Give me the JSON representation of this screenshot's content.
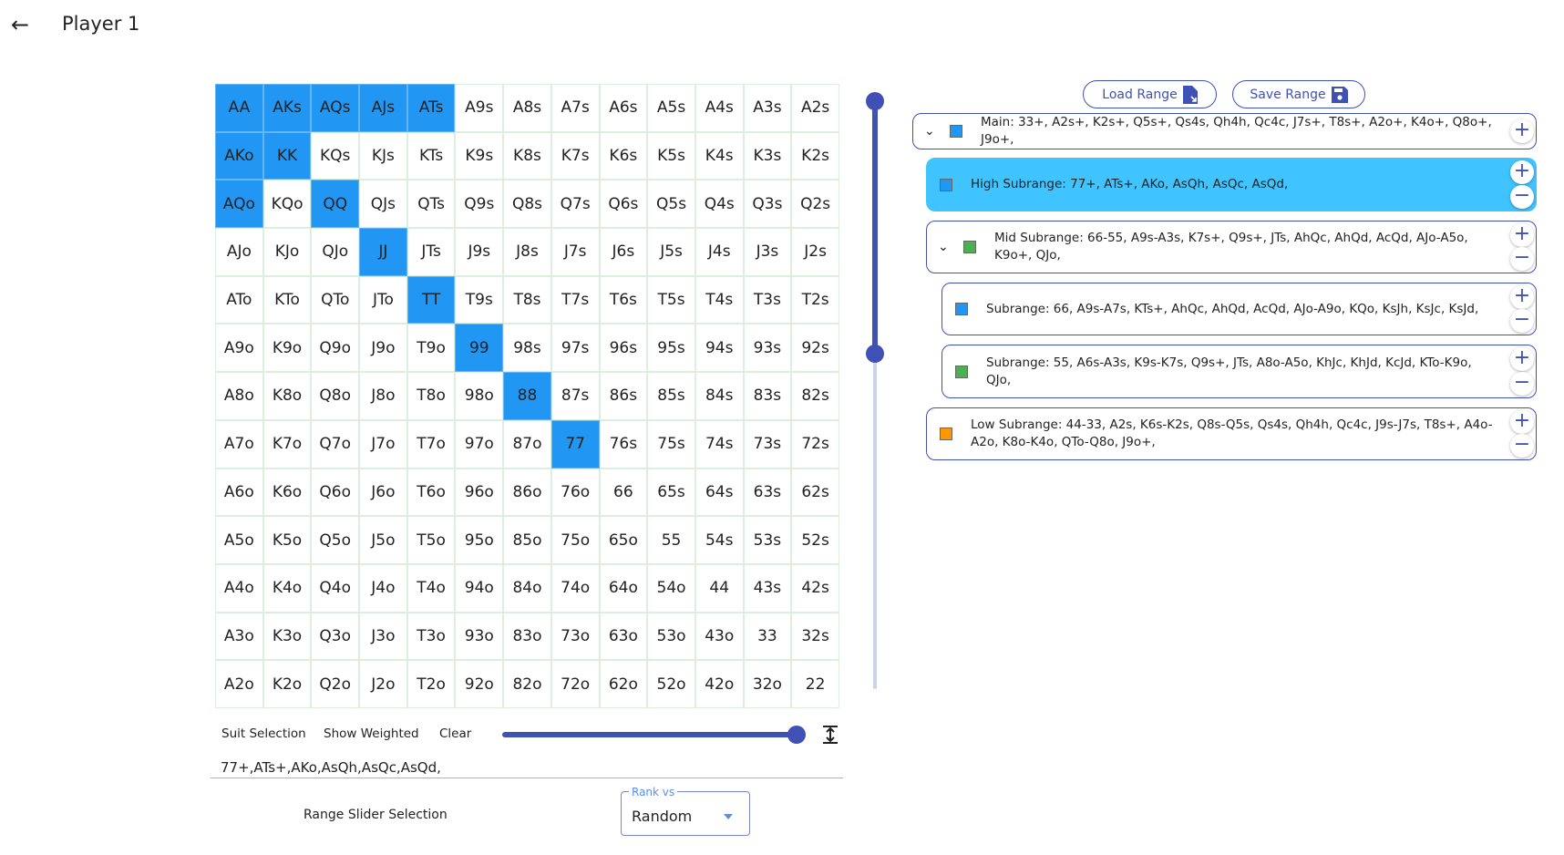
{
  "header": {
    "title": "Player 1",
    "back_icon": "arrow-left-icon"
  },
  "grid": {
    "selected_color": "#2196f3",
    "rows": [
      [
        "AA",
        "AKs",
        "AQs",
        "AJs",
        "ATs",
        "A9s",
        "A8s",
        "A7s",
        "A6s",
        "A5s",
        "A4s",
        "A3s",
        "A2s"
      ],
      [
        "AKo",
        "KK",
        "KQs",
        "KJs",
        "KTs",
        "K9s",
        "K8s",
        "K7s",
        "K6s",
        "K5s",
        "K4s",
        "K3s",
        "K2s"
      ],
      [
        "AQo",
        "KQo",
        "QQ",
        "QJs",
        "QTs",
        "Q9s",
        "Q8s",
        "Q7s",
        "Q6s",
        "Q5s",
        "Q4s",
        "Q3s",
        "Q2s"
      ],
      [
        "AJo",
        "KJo",
        "QJo",
        "JJ",
        "JTs",
        "J9s",
        "J8s",
        "J7s",
        "J6s",
        "J5s",
        "J4s",
        "J3s",
        "J2s"
      ],
      [
        "ATo",
        "KTo",
        "QTo",
        "JTo",
        "TT",
        "T9s",
        "T8s",
        "T7s",
        "T6s",
        "T5s",
        "T4s",
        "T3s",
        "T2s"
      ],
      [
        "A9o",
        "K9o",
        "Q9o",
        "J9o",
        "T9o",
        "99",
        "98s",
        "97s",
        "96s",
        "95s",
        "94s",
        "93s",
        "92s"
      ],
      [
        "A8o",
        "K8o",
        "Q8o",
        "J8o",
        "T8o",
        "98o",
        "88",
        "87s",
        "86s",
        "85s",
        "84s",
        "83s",
        "82s"
      ],
      [
        "A7o",
        "K7o",
        "Q7o",
        "J7o",
        "T7o",
        "97o",
        "87o",
        "77",
        "76s",
        "75s",
        "74s",
        "73s",
        "72s"
      ],
      [
        "A6o",
        "K6o",
        "Q6o",
        "J6o",
        "T6o",
        "96o",
        "86o",
        "76o",
        "66",
        "65s",
        "64s",
        "63s",
        "62s"
      ],
      [
        "A5o",
        "K5o",
        "Q5o",
        "J5o",
        "T5o",
        "95o",
        "85o",
        "75o",
        "65o",
        "55",
        "54s",
        "53s",
        "52s"
      ],
      [
        "A4o",
        "K4o",
        "Q4o",
        "J4o",
        "T4o",
        "94o",
        "84o",
        "74o",
        "64o",
        "54o",
        "44",
        "43s",
        "42s"
      ],
      [
        "A3o",
        "K3o",
        "Q3o",
        "J3o",
        "T3o",
        "93o",
        "83o",
        "73o",
        "63o",
        "53o",
        "43o",
        "33",
        "32s"
      ],
      [
        "A2o",
        "K2o",
        "Q2o",
        "J2o",
        "T2o",
        "92o",
        "82o",
        "72o",
        "62o",
        "52o",
        "42o",
        "32o",
        "22"
      ]
    ],
    "selected": [
      "AA",
      "AKs",
      "AQs",
      "AJs",
      "ATs",
      "AKo",
      "KK",
      "AQo",
      "QQ",
      "JJ",
      "TT",
      "99",
      "88",
      "77"
    ]
  },
  "controls": {
    "suit_selection": "Suit Selection",
    "show_weighted": "Show Weighted",
    "clear": "Clear",
    "weight_slider_percent": 100,
    "range_text": "77+,ATs+,AKo,AsQh,AsQc,AsQd,",
    "range_slider_label": "Range Slider Selection",
    "rank_vs_label": "Rank vs",
    "rank_vs_value": "Random"
  },
  "vertical_slider": {
    "low_percent": 0,
    "high_percent": 43
  },
  "panel": {
    "load_label": "Load Range",
    "save_label": "Save Range",
    "ranges": [
      {
        "text": "Main: 33+, A2s+, K2s+, Q5s+, Qs4s, Qh4h, Qc4c, J7s+, T8s+, A2o+, K4o+, Q8o+, J9o+,",
        "color": "#2196f3"
      },
      {
        "text": "High Subrange: 77+, ATs+, AKo, AsQh, AsQc, AsQd,",
        "color": "#2196f3"
      },
      {
        "text": "Mid Subrange: 66-55, A9s-A3s, K7s+, Q9s+, JTs, AhQc, AhQd, AcQd, AJo-A5o, K9o+, QJo,",
        "color": "#4caf50"
      },
      {
        "text": "Subrange: 66, A9s-A7s, KTs+, AhQc, AhQd, AcQd, AJo-A9o, KQo, KsJh, KsJc, KsJd,",
        "color": "#2196f3"
      },
      {
        "text": "Subrange: 55, A6s-A3s, K9s-K7s, Q9s+, JTs, A8o-A5o, KhJc, KhJd, KcJd, KTo-K9o, QJo,",
        "color": "#4caf50"
      },
      {
        "text": "Low Subrange: 44-33, A2s, K6s-K2s, Q8s-Q5s, Qs4s, Qh4h, Qc4c, J9s-J7s, T8s+, A4o-A2o, K8o-K4o, QTo-Q8o, J9o+,",
        "color": "#ff9800"
      }
    ]
  }
}
